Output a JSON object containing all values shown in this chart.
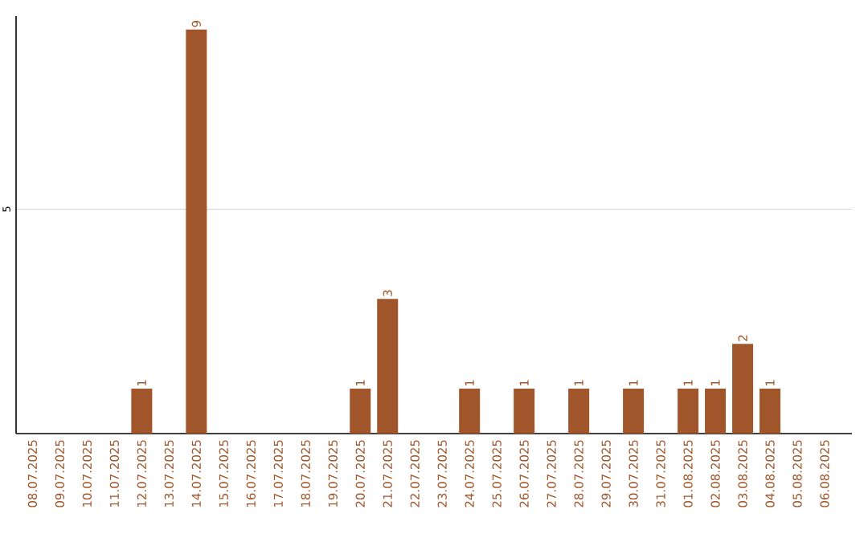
{
  "chart_data": {
    "type": "bar",
    "categories": [
      "08.07.2025",
      "09.07.2025",
      "10.07.2025",
      "11.07.2025",
      "12.07.2025",
      "13.07.2025",
      "14.07.2025",
      "15.07.2025",
      "16.07.2025",
      "17.07.2025",
      "18.07.2025",
      "19.07.2025",
      "20.07.2025",
      "21.07.2025",
      "22.07.2025",
      "23.07.2025",
      "24.07.2025",
      "25.07.2025",
      "26.07.2025",
      "27.07.2025",
      "28.07.2025",
      "29.07.2025",
      "30.07.2025",
      "31.07.2025",
      "01.08.2025",
      "02.08.2025",
      "03.08.2025",
      "04.08.2025",
      "05.08.2025",
      "06.08.2025"
    ],
    "values": [
      0,
      0,
      0,
      0,
      1,
      0,
      9,
      0,
      0,
      0,
      0,
      0,
      1,
      3,
      0,
      0,
      1,
      0,
      1,
      0,
      1,
      0,
      1,
      0,
      1,
      1,
      2,
      1,
      0,
      0
    ],
    "value_labels": [
      null,
      null,
      null,
      null,
      "1",
      null,
      "9",
      null,
      null,
      null,
      null,
      null,
      "1",
      "3",
      null,
      null,
      "1",
      null,
      "1",
      null,
      "1",
      null,
      "1",
      null,
      "1",
      "1",
      "2",
      "1",
      null,
      null
    ],
    "color": "#a0562a",
    "ylim": [
      0,
      9.3
    ],
    "yticks": [
      5
    ],
    "grid": "y"
  }
}
